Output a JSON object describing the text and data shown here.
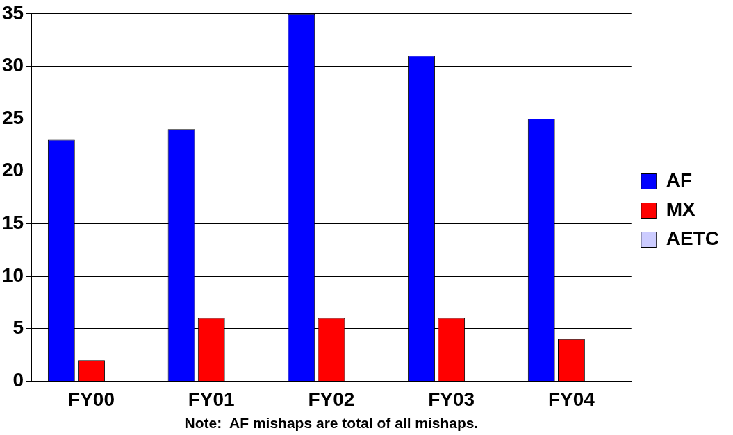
{
  "chart_data": {
    "type": "bar",
    "categories": [
      "FY00",
      "FY01",
      "FY02",
      "FY03",
      "FY04"
    ],
    "series": [
      {
        "name": "AF",
        "color": "#0000ff",
        "values": [
          23,
          24,
          35,
          31,
          25
        ]
      },
      {
        "name": "MX",
        "color": "#ff0000",
        "values": [
          2,
          6,
          6,
          6,
          4
        ]
      },
      {
        "name": "AETC",
        "color": "#ccccff",
        "values": [
          0,
          0,
          0,
          0,
          0
        ]
      }
    ],
    "ylim": [
      0,
      35
    ],
    "yticks": [
      0,
      5,
      10,
      15,
      20,
      25,
      30,
      35
    ],
    "grid": "y",
    "legend": "right",
    "annotations": [
      "Note:  AF mishaps are total of all mishaps."
    ]
  }
}
